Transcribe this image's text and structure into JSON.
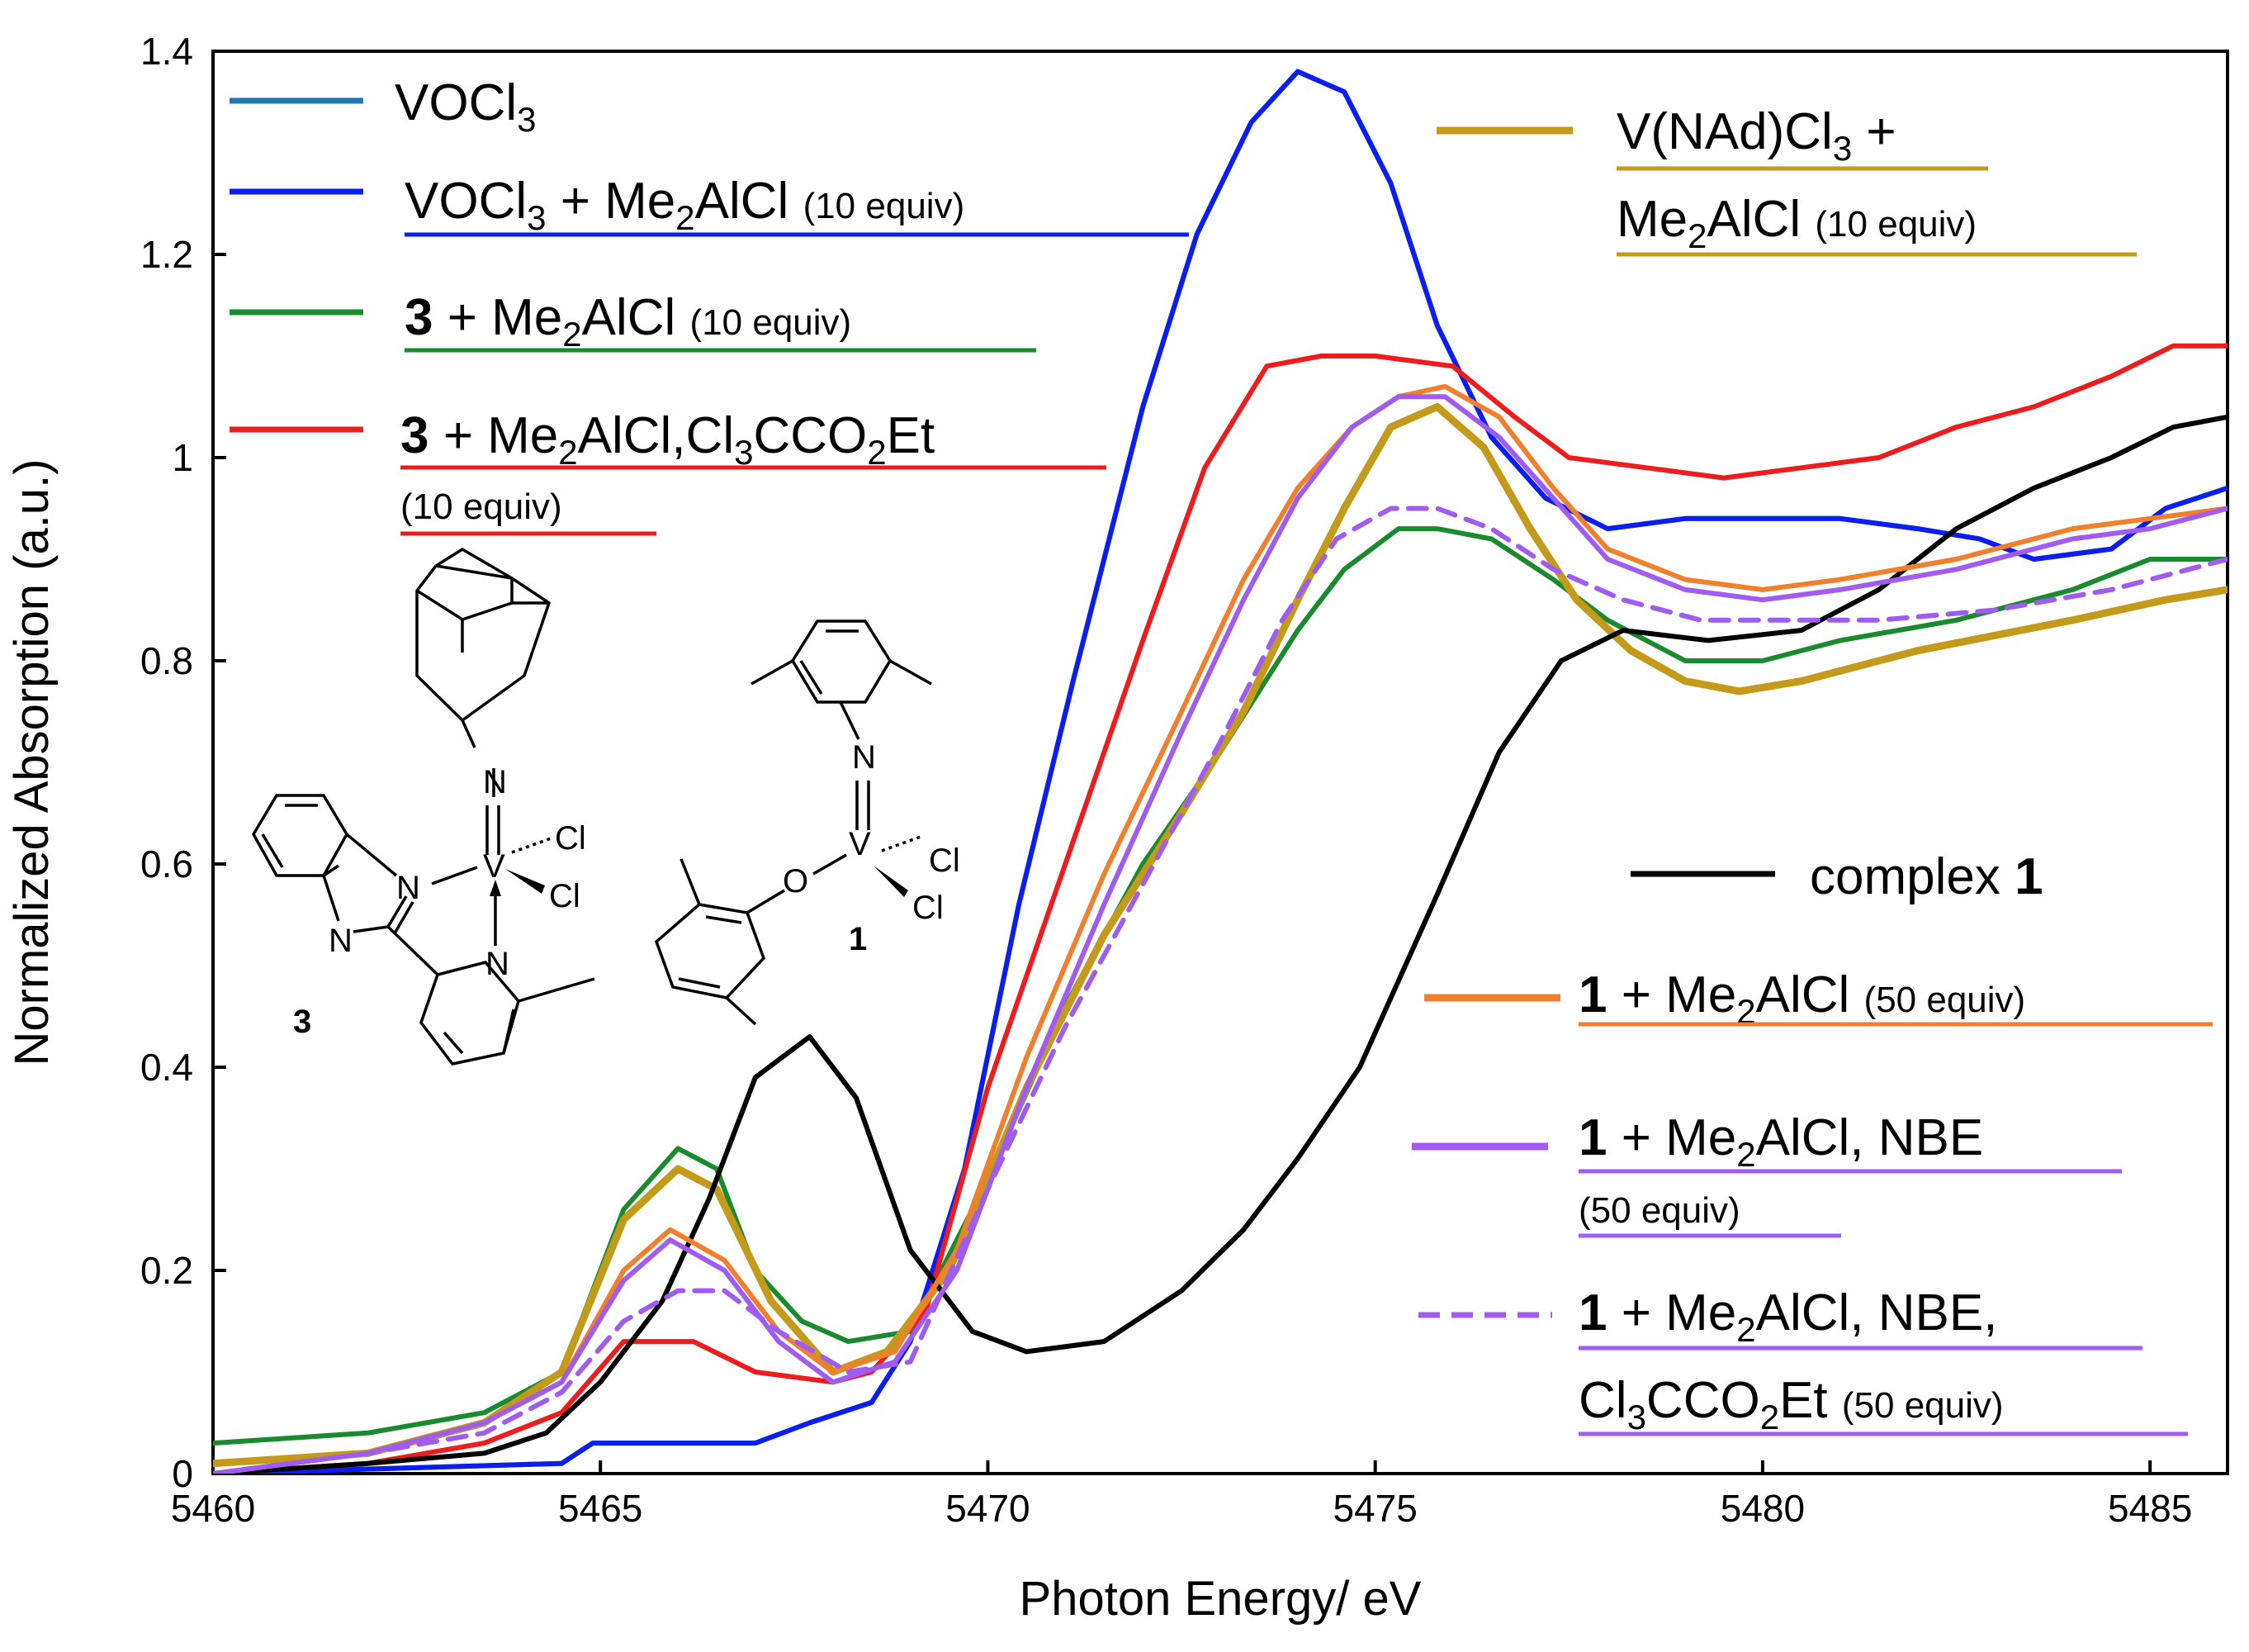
{
  "chart_data": {
    "type": "line",
    "xlabel": "Photon Energy/ eV",
    "ylabel": "Normalized Absorption (a.u.)",
    "xlim": [
      5460,
      5486
    ],
    "ylim": [
      0,
      1.4
    ],
    "xticks": [
      5460,
      5465,
      5470,
      5475,
      5480,
      5485
    ],
    "yticks": [
      0,
      0.2,
      0.4,
      0.6,
      0.8,
      1,
      1.2,
      1.4
    ],
    "ytick_labels": [
      "0",
      "0.2",
      "0.4",
      "0.6",
      "0.8",
      "1",
      "1.2",
      "1.4"
    ],
    "series": [
      {
        "id": "vocl3",
        "color": "#1f77b4",
        "dash": false,
        "x": [
          5460,
          5464.5,
          5464.9,
          5467,
          5467.7,
          5468.5,
          5469,
          5469.7,
          5470.4,
          5471.1,
          5472,
          5472.7,
          5473.4,
          5474,
          5474.6,
          5475.2,
          5475.8,
          5476.5,
          5477.2,
          5478,
          5479,
          5480,
          5481,
          5482,
          5482.8,
          5483.5,
          5484.5,
          5485.2,
          5486
        ],
        "y": [
          0,
          0.01,
          0.03,
          0.03,
          0.05,
          0.07,
          0.13,
          0.3,
          0.56,
          0.78,
          1.05,
          1.22,
          1.33,
          1.38,
          1.36,
          1.27,
          1.13,
          1.02,
          0.96,
          0.93,
          0.94,
          0.94,
          0.94,
          0.93,
          0.92,
          0.9,
          0.91,
          0.95,
          0.97
        ]
      },
      {
        "id": "vocl3_me2alcl",
        "color": "#0a1ef0",
        "dash": false,
        "x": [
          5460,
          5464.5,
          5464.9,
          5467,
          5467.7,
          5468.5,
          5469,
          5469.7,
          5470.4,
          5471.1,
          5472,
          5472.7,
          5473.4,
          5474,
          5474.6,
          5475.2,
          5475.8,
          5476.5,
          5477.2,
          5478,
          5479,
          5480,
          5481,
          5482,
          5482.8,
          5483.5,
          5484.5,
          5485.2,
          5486
        ],
        "y": [
          0,
          0.01,
          0.03,
          0.03,
          0.05,
          0.07,
          0.13,
          0.3,
          0.56,
          0.78,
          1.05,
          1.22,
          1.33,
          1.38,
          1.36,
          1.27,
          1.13,
          1.02,
          0.96,
          0.93,
          0.94,
          0.94,
          0.94,
          0.93,
          0.92,
          0.9,
          0.91,
          0.95,
          0.97
        ]
      },
      {
        "id": "c3_me2alcl",
        "color": "#1a8a2e",
        "dash": false,
        "x": [
          5460,
          5462,
          5463.5,
          5464.5,
          5465.3,
          5466,
          5466.5,
          5467,
          5467.6,
          5468.2,
          5469,
          5470,
          5471,
          5472,
          5473,
          5474,
          5474.6,
          5475.3,
          5475.8,
          5476.5,
          5477.3,
          5478,
          5479,
          5480,
          5481,
          5482.5,
          5484,
          5485,
          5486
        ],
        "y": [
          0.03,
          0.04,
          0.06,
          0.1,
          0.26,
          0.32,
          0.3,
          0.2,
          0.15,
          0.13,
          0.14,
          0.29,
          0.46,
          0.6,
          0.71,
          0.83,
          0.89,
          0.93,
          0.93,
          0.92,
          0.88,
          0.84,
          0.8,
          0.8,
          0.82,
          0.84,
          0.87,
          0.9,
          0.9
        ]
      },
      {
        "id": "c3_me2alcl_cl3cco2et",
        "color": "#ee1c1c",
        "dash": false,
        "x": [
          5460,
          5462,
          5463.5,
          5464.5,
          5465.3,
          5466.2,
          5467,
          5468,
          5468.5,
          5469.2,
          5470,
          5471,
          5472,
          5472.8,
          5473.6,
          5474.3,
          5475,
          5476,
          5476.8,
          5477.5,
          5478.5,
          5479.5,
          5480.5,
          5481.5,
          5482.5,
          5483.5,
          5484.5,
          5485.3,
          5486
        ],
        "y": [
          0,
          0.01,
          0.03,
          0.06,
          0.13,
          0.13,
          0.1,
          0.09,
          0.1,
          0.16,
          0.38,
          0.6,
          0.82,
          0.99,
          1.09,
          1.1,
          1.1,
          1.09,
          1.04,
          1.0,
          0.99,
          0.98,
          0.99,
          1.0,
          1.03,
          1.05,
          1.08,
          1.11,
          1.11
        ]
      },
      {
        "id": "vnad_me2alcl",
        "color": "#c49a1a",
        "dash": false,
        "thick": true,
        "x": [
          5460,
          5462,
          5463.5,
          5464.5,
          5465.3,
          5466,
          5466.5,
          5467.2,
          5468,
          5468.7,
          5469.5,
          5470.5,
          5471.5,
          5472.5,
          5473.3,
          5474,
          5474.6,
          5475.2,
          5475.8,
          5476.4,
          5477,
          5477.6,
          5478.3,
          5479,
          5479.7,
          5480.5,
          5482,
          5484,
          5485.2,
          5486
        ],
        "y": [
          0.01,
          0.02,
          0.05,
          0.1,
          0.25,
          0.3,
          0.28,
          0.17,
          0.1,
          0.12,
          0.2,
          0.38,
          0.53,
          0.65,
          0.75,
          0.86,
          0.95,
          1.03,
          1.05,
          1.01,
          0.93,
          0.86,
          0.81,
          0.78,
          0.77,
          0.78,
          0.81,
          0.84,
          0.86,
          0.87
        ]
      },
      {
        "id": "complex1",
        "color": "#000000",
        "dash": false,
        "x": [
          5460,
          5462,
          5463.5,
          5464.3,
          5465,
          5465.8,
          5466.4,
          5467,
          5467.7,
          5468.3,
          5469,
          5469.8,
          5470.5,
          5471.5,
          5472.5,
          5473.3,
          5474,
          5474.8,
          5475.8,
          5476.6,
          5477.4,
          5478.2,
          5479.3,
          5480.5,
          5481.5,
          5482.5,
          5483.5,
          5484.5,
          5485.3,
          5486
        ],
        "y": [
          0,
          0.01,
          0.02,
          0.04,
          0.09,
          0.17,
          0.27,
          0.39,
          0.43,
          0.37,
          0.22,
          0.14,
          0.12,
          0.13,
          0.18,
          0.24,
          0.31,
          0.4,
          0.57,
          0.71,
          0.8,
          0.83,
          0.82,
          0.83,
          0.87,
          0.93,
          0.97,
          1.0,
          1.03,
          1.04
        ]
      },
      {
        "id": "c1_me2alcl",
        "color": "#f07f2e",
        "dash": false,
        "x": [
          5460,
          5462,
          5463.5,
          5464.5,
          5465.3,
          5465.9,
          5466.6,
          5467.3,
          5468,
          5468.8,
          5469.6,
          5470.5,
          5471.5,
          5472.5,
          5473.3,
          5474,
          5474.7,
          5475.3,
          5475.9,
          5476.6,
          5477.3,
          5478,
          5479,
          5480,
          5481,
          5482.5,
          5484,
          5485,
          5486
        ],
        "y": [
          0,
          0.02,
          0.05,
          0.09,
          0.2,
          0.24,
          0.21,
          0.14,
          0.1,
          0.12,
          0.22,
          0.41,
          0.59,
          0.75,
          0.88,
          0.97,
          1.03,
          1.06,
          1.07,
          1.04,
          0.97,
          0.91,
          0.88,
          0.87,
          0.88,
          0.9,
          0.93,
          0.94,
          0.95
        ]
      },
      {
        "id": "c1_me2alcl_nbe",
        "color": "#a05cf0",
        "dash": false,
        "x": [
          5460,
          5462,
          5463.5,
          5464.5,
          5465.3,
          5465.9,
          5466.6,
          5467.3,
          5468,
          5468.8,
          5469.6,
          5470.5,
          5471.5,
          5472.5,
          5473.3,
          5474,
          5474.7,
          5475.3,
          5475.9,
          5476.6,
          5477.3,
          5478,
          5479,
          5480,
          5481,
          5482.5,
          5484,
          5485,
          5486
        ],
        "y": [
          0,
          0.02,
          0.05,
          0.09,
          0.19,
          0.23,
          0.2,
          0.13,
          0.09,
          0.11,
          0.2,
          0.38,
          0.56,
          0.73,
          0.86,
          0.96,
          1.03,
          1.06,
          1.06,
          1.02,
          0.96,
          0.9,
          0.87,
          0.86,
          0.87,
          0.89,
          0.92,
          0.93,
          0.95
        ]
      },
      {
        "id": "c1_me2alcl_nbe_cl3cco2et",
        "color": "#a05cf0",
        "dash": true,
        "x": [
          5460,
          5462,
          5463.5,
          5464.5,
          5465.3,
          5466,
          5466.6,
          5467.3,
          5468.2,
          5469,
          5470,
          5471,
          5472,
          5473,
          5473.8,
          5474.5,
          5475.2,
          5475.8,
          5476.5,
          5477.3,
          5478.2,
          5479.2,
          5480.2,
          5481.5,
          5483,
          5484.5,
          5485.5,
          5486
        ],
        "y": [
          0,
          0.02,
          0.04,
          0.08,
          0.15,
          0.18,
          0.18,
          0.14,
          0.1,
          0.11,
          0.28,
          0.44,
          0.58,
          0.72,
          0.84,
          0.92,
          0.95,
          0.95,
          0.93,
          0.89,
          0.86,
          0.84,
          0.84,
          0.84,
          0.85,
          0.87,
          0.89,
          0.9
        ]
      }
    ]
  },
  "legend": {
    "vocl3": {
      "t1": "VOCl",
      "s1": "3"
    },
    "vocl3_me2alcl": {
      "t1": "VOCl",
      "s1": "3",
      "t2": " + Me",
      "s2": "2",
      "t3": "AlCl ",
      "small": "(10 equiv)"
    },
    "c3_me2alcl": {
      "bold": "3",
      "t1": " + Me",
      "s1": "2",
      "t2": "AlCl ",
      "small": "(10 equiv)"
    },
    "c3_me2alcl_cl3cco2et": {
      "bold": "3",
      "t1": " + Me",
      "s1": "2",
      "t2": "AlCl,Cl",
      "s2": "3",
      "t3": "CCO",
      "s3": "2",
      "t4": "Et",
      "line2": "(10 equiv)"
    },
    "vnad_me2alcl": {
      "t1": "V(NAd)Cl",
      "s1": "3",
      "t2": " +",
      "t3": "Me",
      "s2": "2",
      "t4": "AlCl ",
      "small": "(10 equiv)"
    },
    "complex1": {
      "t1": "complex ",
      "bold": "1"
    },
    "c1_me2alcl": {
      "bold": "1",
      "t1": " + Me",
      "s1": "2",
      "t2": "AlCl ",
      "small": "(50 equiv)"
    },
    "c1_me2alcl_nbe": {
      "bold": "1",
      "t1": " + Me",
      "s1": "2",
      "t2": "AlCl, NBE",
      "line2": "(50 equiv)"
    },
    "c1_me2alcl_nbe_cl3cco2et": {
      "bold": "1",
      "t1": " + Me",
      "s1": "2",
      "t2": "AlCl, NBE,",
      "t3": "Cl",
      "s2": "3",
      "t4": "CCO",
      "s3": "2",
      "t5": "Et ",
      "small": "(50 equiv)"
    }
  },
  "structures": {
    "complex3": {
      "label": "3",
      "n_imido": "N",
      "v": "V",
      "cl_a": "Cl",
      "cl_b": "Cl",
      "n_ring1": "N",
      "n_ring2": "N",
      "n_py": "N"
    },
    "complex1": {
      "label": "1",
      "n_imido": "N",
      "v": "V",
      "cl_a": "Cl",
      "cl_b": "Cl",
      "o": "O"
    }
  }
}
